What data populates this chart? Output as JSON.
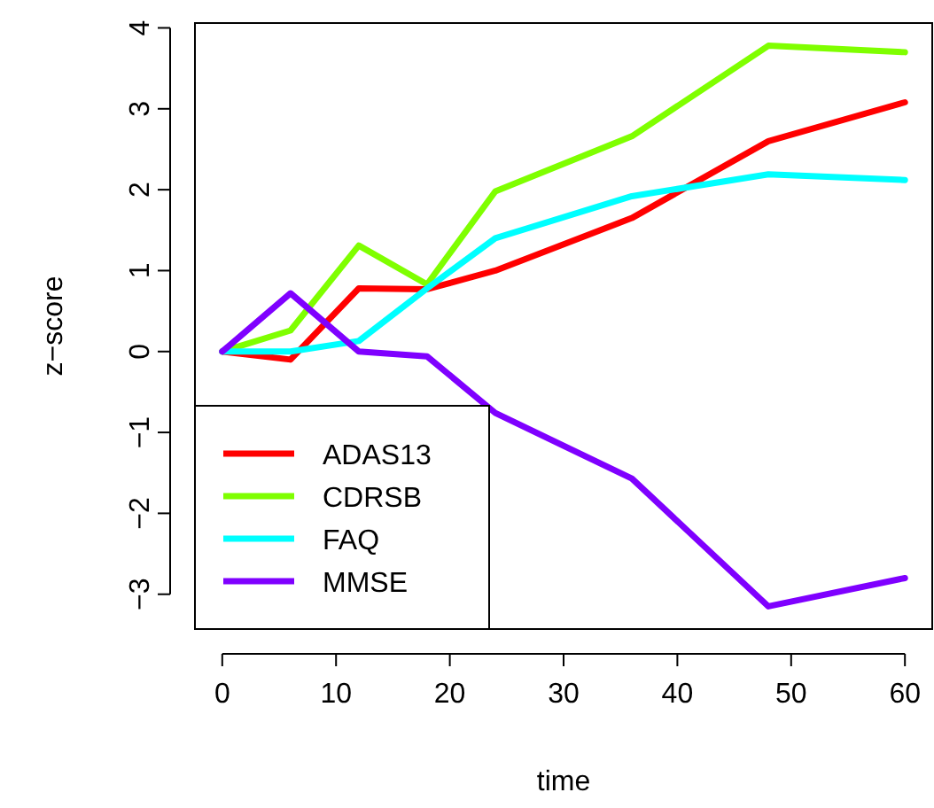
{
  "chart_data": {
    "type": "line",
    "xlabel": "time",
    "ylabel": "z−score",
    "x": [
      0,
      6,
      12,
      18,
      24,
      36,
      48,
      60
    ],
    "xlim": [
      -2.4,
      62.4
    ],
    "xticks": [
      0,
      10,
      20,
      30,
      40,
      50,
      60
    ],
    "ylim": [
      -3.43,
      4.06
    ],
    "yticks": [
      -3,
      -2,
      -1,
      0,
      1,
      2,
      3,
      4
    ],
    "series": [
      {
        "name": "ADAS13",
        "color": "#ff0000",
        "values": [
          0,
          -0.1,
          0.78,
          0.77,
          1.0,
          1.65,
          2.6,
          3.08
        ]
      },
      {
        "name": "CDRSB",
        "color": "#7fff00",
        "values": [
          0,
          0.26,
          1.31,
          0.83,
          1.98,
          2.66,
          3.78,
          3.7
        ]
      },
      {
        "name": "FAQ",
        "color": "#00ffff",
        "values": [
          0,
          0.0,
          0.13,
          0.78,
          1.4,
          1.92,
          2.19,
          2.12
        ]
      },
      {
        "name": "MMSE",
        "color": "#7f00ff",
        "values": [
          0,
          0.72,
          0,
          -0.06,
          -0.76,
          -1.57,
          -3.15,
          -2.8
        ]
      }
    ],
    "legend": "bottom left",
    "line_style": "solid",
    "marker": "none",
    "grid": false
  }
}
